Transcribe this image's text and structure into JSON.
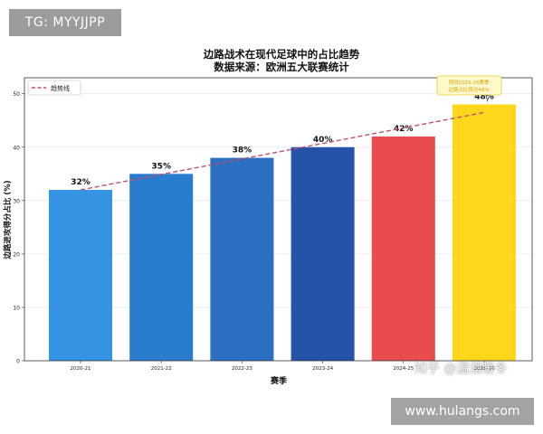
{
  "tag_label": "TG: MYYJJPP",
  "site_url": "www.hulangs.com",
  "watermark_text": "知乎 @温酒暖冬",
  "chart_data": {
    "type": "bar",
    "title": "边路战术在现代足球中的占比趋势",
    "subtitle": "数据来源：欧洲五大联赛统计",
    "xlabel": "赛季",
    "ylabel": "边路进攻得分占比 (%)",
    "categories": [
      "2020-21",
      "2021-22",
      "2022-23",
      "2023-24",
      "2024-25",
      "2025-26"
    ],
    "values": [
      32,
      35,
      38,
      40,
      42,
      48
    ],
    "value_labels": [
      "32%",
      "35%",
      "38%",
      "40%",
      "42%",
      "48%"
    ],
    "bar_colors": [
      "#3593e3",
      "#2a7ccf",
      "#2a6fc2",
      "#2453a8",
      "#e84c4c",
      "#fdd71c"
    ],
    "ylim": [
      0,
      53
    ],
    "yticks": [
      0,
      10,
      20,
      30,
      40,
      50
    ],
    "grid": true,
    "legend": {
      "position": "top-left",
      "entries": [
        "趋势线"
      ]
    },
    "trend_line": {
      "name": "趋势线",
      "color": "#c0506a",
      "style": "dashed",
      "start": 32,
      "end": 46.5
    },
    "annotation": {
      "text": [
        "预测2025-26赛季",
        "边路占比将达48%"
      ],
      "target_category": "2025-26",
      "value": 48
    }
  }
}
